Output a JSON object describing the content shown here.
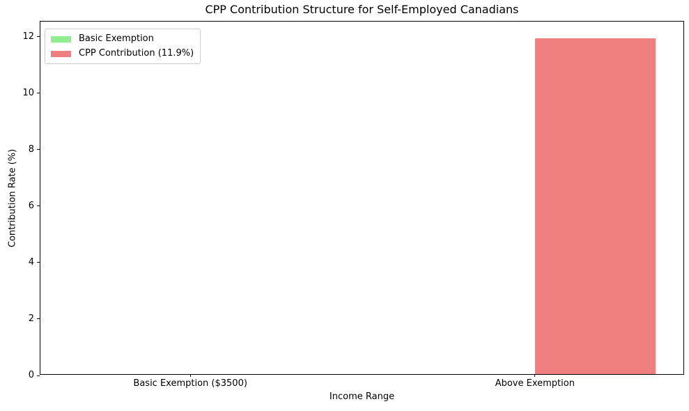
{
  "chart_data": {
    "type": "bar",
    "title": "CPP Contribution Structure for Self-Employed Canadians",
    "xlabel": "Income Range",
    "ylabel": "Contribution Rate (%)",
    "categories": [
      "Basic Exemption ($3500)",
      "Above Exemption"
    ],
    "series": [
      {
        "name": "Basic Exemption",
        "color": "#90EE90",
        "values": [
          0,
          0
        ]
      },
      {
        "name": "CPP Contribution (11.9%)",
        "color": "#F08080",
        "values": [
          0,
          11.9
        ]
      }
    ],
    "yticks": [
      0,
      2,
      4,
      6,
      8,
      10,
      12
    ],
    "ylim": [
      0,
      12.54
    ],
    "xlim": [
      -0.435,
      1.435
    ],
    "bar_width": 0.35,
    "grid": false,
    "legend_position": "upper left",
    "background_color": "#ffffff",
    "text_color": "#000000",
    "spine_color": "#000000"
  }
}
